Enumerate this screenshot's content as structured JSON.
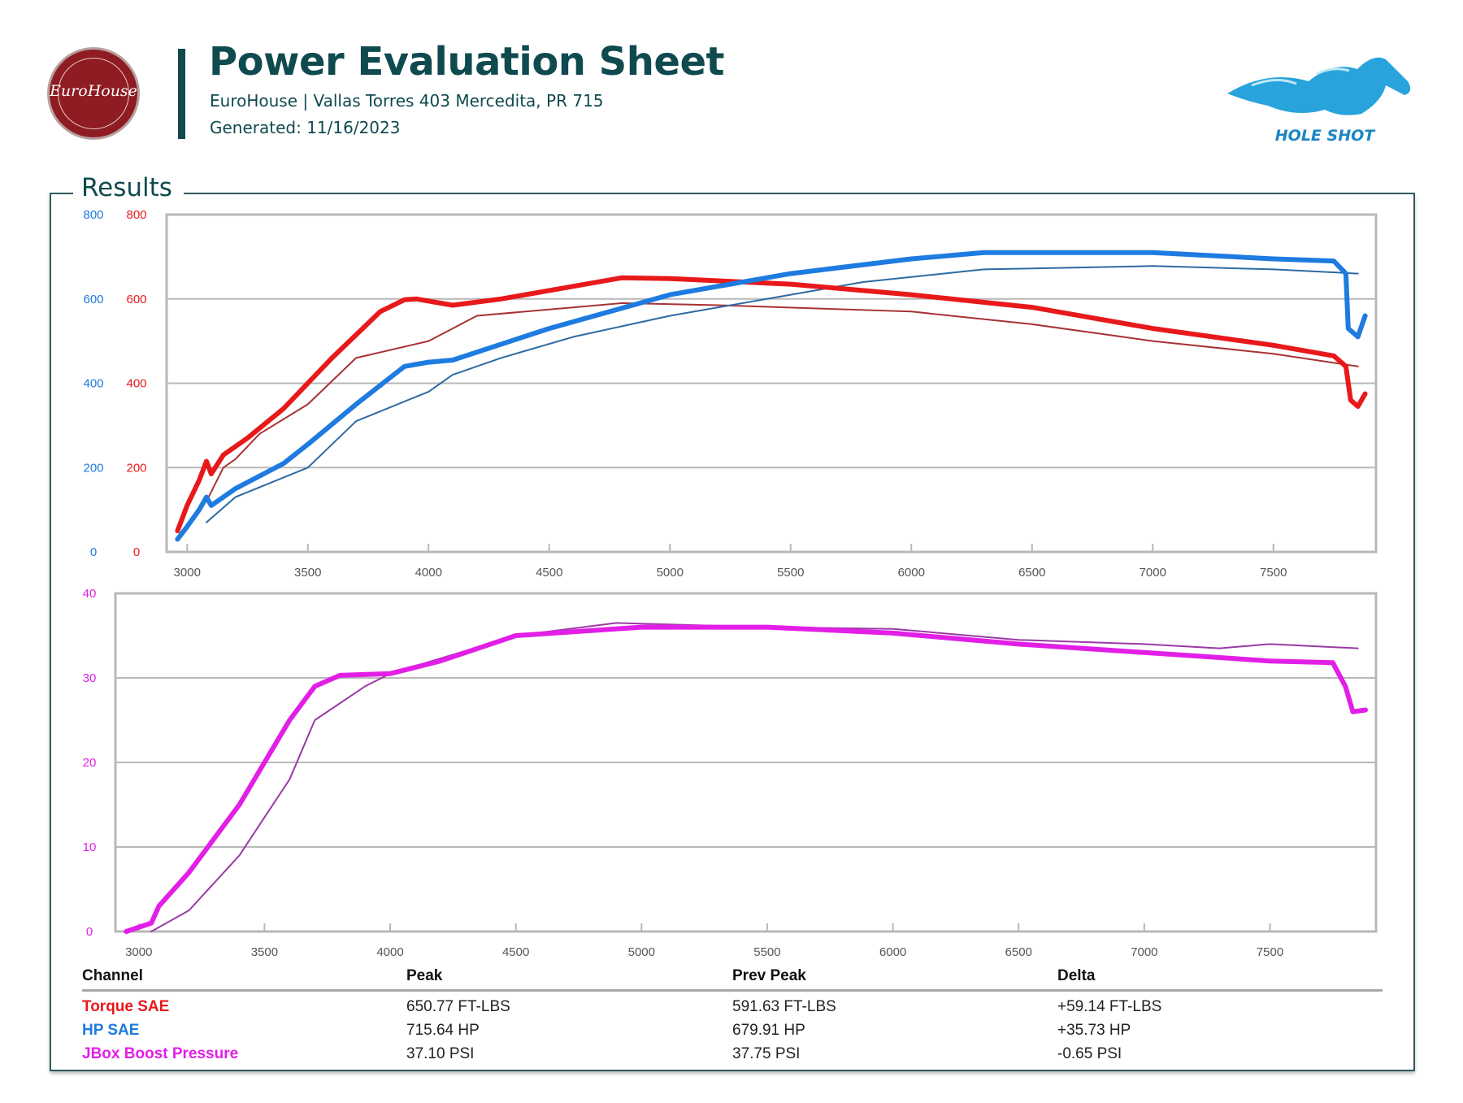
{
  "header": {
    "title": "Power Evaluation Sheet",
    "subtitle": "EuroHouse | Vallas Torres 403 Mercedita, PR 715",
    "generated": "Generated: 11/16/2023",
    "left_logo_text": "EuroHouse",
    "right_logo_text": "HOLE SHOT"
  },
  "section_title": "Results",
  "colors": {
    "torque": "#e8191b",
    "hp": "#1e7be0",
    "boost": "#e21fe6",
    "torque_prev": "#a83236",
    "hp_prev": "#2d6aa3",
    "boost_prev": "#9a3aa6",
    "brand": "#0f4a4f"
  },
  "chart_data": [
    {
      "type": "line",
      "xlim": [
        2915,
        7925
      ],
      "ylim": [
        0,
        800
      ],
      "x_ticks": [
        3000,
        3500,
        4000,
        4500,
        5000,
        5500,
        6000,
        6500,
        7000,
        7500
      ],
      "y_ticks_left_hp": [
        0,
        200,
        400,
        600,
        800
      ],
      "y_ticks_left_torque": [
        0,
        200,
        400,
        600,
        800
      ],
      "grid": true,
      "series": [
        {
          "name": "Torque SAE",
          "style": "current",
          "color": "#e8191b",
          "x": [
            2960,
            3000,
            3050,
            3080,
            3100,
            3150,
            3250,
            3400,
            3500,
            3600,
            3800,
            3900,
            3950,
            4100,
            4300,
            4500,
            4800,
            5000,
            5500,
            6000,
            6500,
            7000,
            7500,
            7750,
            7800,
            7820,
            7850,
            7880
          ],
          "y": [
            50,
            110,
            170,
            215,
            185,
            230,
            270,
            340,
            400,
            460,
            570,
            598,
            600,
            585,
            600,
            620,
            650,
            648,
            635,
            610,
            580,
            530,
            490,
            465,
            440,
            360,
            345,
            375
          ]
        },
        {
          "name": "HP SAE",
          "style": "current",
          "color": "#1e7be0",
          "x": [
            2960,
            3000,
            3050,
            3080,
            3100,
            3200,
            3400,
            3500,
            3700,
            3900,
            4000,
            4100,
            4500,
            5000,
            5500,
            6000,
            6300,
            7000,
            7500,
            7750,
            7800,
            7810,
            7850,
            7880
          ],
          "y": [
            30,
            60,
            100,
            130,
            110,
            150,
            210,
            255,
            350,
            440,
            450,
            455,
            530,
            610,
            660,
            695,
            710,
            710,
            695,
            690,
            660,
            530,
            510,
            560
          ]
        },
        {
          "name": "Torque SAE",
          "style": "previous",
          "color": "#a83236",
          "x": [
            3080,
            3150,
            3200,
            3300,
            3500,
            3700,
            4000,
            4100,
            4200,
            4500,
            4800,
            5200,
            6000,
            6500,
            7000,
            7500,
            7850
          ],
          "y": [
            120,
            200,
            220,
            280,
            350,
            460,
            500,
            530,
            560,
            575,
            590,
            585,
            570,
            540,
            500,
            470,
            440
          ]
        },
        {
          "name": "HP SAE",
          "style": "previous",
          "color": "#2d6aa3",
          "x": [
            3080,
            3200,
            3500,
            3700,
            4000,
            4100,
            4300,
            4600,
            5000,
            5500,
            5800,
            6300,
            7000,
            7500,
            7850
          ],
          "y": [
            70,
            130,
            200,
            310,
            380,
            420,
            460,
            510,
            560,
            610,
            640,
            670,
            678,
            670,
            660
          ]
        }
      ]
    },
    {
      "type": "line",
      "xlim": [
        2907,
        7922
      ],
      "ylim": [
        0,
        40
      ],
      "x_ticks": [
        3000,
        3500,
        4000,
        4500,
        5000,
        5500,
        6000,
        6500,
        7000,
        7500
      ],
      "y_ticks": [
        0,
        10,
        20,
        30,
        40
      ],
      "grid": true,
      "series": [
        {
          "name": "JBox Boost Pressure",
          "style": "current",
          "color": "#e21fe6",
          "x": [
            2950,
            3050,
            3080,
            3200,
            3400,
            3600,
            3700,
            3800,
            4000,
            4200,
            4500,
            5000,
            5500,
            6000,
            6500,
            7000,
            7500,
            7750,
            7800,
            7830,
            7880
          ],
          "y": [
            0,
            1,
            3,
            7,
            15,
            25,
            29,
            30.3,
            30.5,
            32,
            35,
            36,
            36,
            35.3,
            34,
            33,
            32,
            31.8,
            29,
            26,
            26.2
          ]
        },
        {
          "name": "JBox Boost Pressure",
          "style": "previous",
          "color": "#9a3aa6",
          "x": [
            3050,
            3200,
            3400,
            3600,
            3700,
            3900,
            4000,
            4500,
            4900,
            5500,
            6000,
            6500,
            7000,
            7300,
            7500,
            7850
          ],
          "y": [
            0,
            2.5,
            9,
            18,
            25,
            29,
            30.5,
            35,
            36.5,
            36,
            35.8,
            34.5,
            34,
            33.5,
            34,
            33.5
          ]
        }
      ]
    }
  ],
  "table": {
    "headers": [
      "Channel",
      "Peak",
      "Prev Peak",
      "Delta"
    ],
    "rows": [
      {
        "channel": "Torque SAE",
        "peak": "650.77 FT-LBS",
        "prev": "591.63 FT-LBS",
        "delta": "+59.14 FT-LBS"
      },
      {
        "channel": "HP SAE",
        "peak": "715.64 HP",
        "prev": "679.91 HP",
        "delta": "+35.73 HP"
      },
      {
        "channel": "JBox Boost Pressure",
        "peak": "37.10 PSI",
        "prev": "37.75 PSI",
        "delta": "-0.65 PSI"
      }
    ]
  }
}
